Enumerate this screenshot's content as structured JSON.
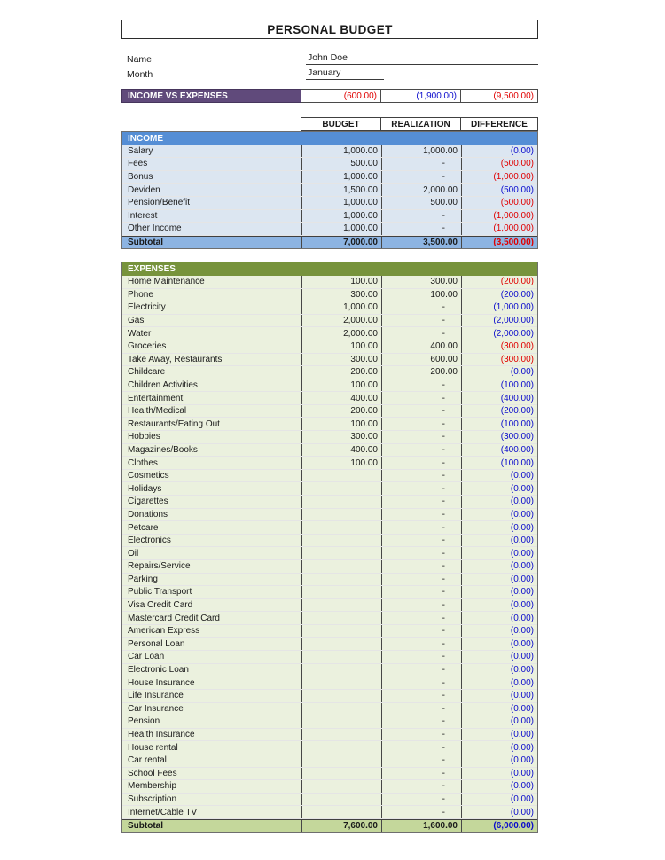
{
  "page": {
    "title": "PERSONAL BUDGET"
  },
  "fields": {
    "name_label": "Name",
    "name_value": "John Doe",
    "month_label": "Month",
    "month_value": "January"
  },
  "summary": {
    "label": "INCOME VS EXPENSES",
    "cells": [
      {
        "value": "(600.00)",
        "color": "red"
      },
      {
        "value": "(1,900.00)",
        "color": "blue"
      },
      {
        "value": "(9,500.00)",
        "color": "red"
      }
    ]
  },
  "table": {
    "columns": [
      "BUDGET",
      "REALIZATION",
      "DIFFERENCE"
    ],
    "income": {
      "header": "INCOME",
      "rows": [
        {
          "label": "Salary",
          "budget": "1,000.00",
          "realization": "1,000.00",
          "difference": "(0.00)",
          "diff_color": "blue"
        },
        {
          "label": "Fees",
          "budget": "500.00",
          "realization": "-",
          "difference": "(500.00)",
          "diff_color": "red"
        },
        {
          "label": "Bonus",
          "budget": "1,000.00",
          "realization": "-",
          "difference": "(1,000.00)",
          "diff_color": "red"
        },
        {
          "label": "Deviden",
          "budget": "1,500.00",
          "realization": "2,000.00",
          "difference": "(500.00)",
          "diff_color": "blue"
        },
        {
          "label": "Pension/Benefit",
          "budget": "1,000.00",
          "realization": "500.00",
          "difference": "(500.00)",
          "diff_color": "red"
        },
        {
          "label": "Interest",
          "budget": "1,000.00",
          "realization": "-",
          "difference": "(1,000.00)",
          "diff_color": "red"
        },
        {
          "label": "Other Income",
          "budget": "1,000.00",
          "realization": "-",
          "difference": "(1,000.00)",
          "diff_color": "red"
        }
      ],
      "subtotal": {
        "label": "Subtotal",
        "budget": "7,000.00",
        "realization": "3,500.00",
        "difference": "(3,500.00)",
        "diff_color": "red"
      }
    },
    "expenses": {
      "header": "EXPENSES",
      "rows": [
        {
          "label": "Home Maintenance",
          "budget": "100.00",
          "realization": "300.00",
          "difference": "(200.00)",
          "diff_color": "red"
        },
        {
          "label": "Phone",
          "budget": "300.00",
          "realization": "100.00",
          "difference": "(200.00)",
          "diff_color": "blue"
        },
        {
          "label": "Electricity",
          "budget": "1,000.00",
          "realization": "-",
          "difference": "(1,000.00)",
          "diff_color": "blue"
        },
        {
          "label": "Gas",
          "budget": "2,000.00",
          "realization": "-",
          "difference": "(2,000.00)",
          "diff_color": "blue"
        },
        {
          "label": "Water",
          "budget": "2,000.00",
          "realization": "-",
          "difference": "(2,000.00)",
          "diff_color": "blue"
        },
        {
          "label": "Groceries",
          "budget": "100.00",
          "realization": "400.00",
          "difference": "(300.00)",
          "diff_color": "red"
        },
        {
          "label": "Take Away, Restaurants",
          "budget": "300.00",
          "realization": "600.00",
          "difference": "(300.00)",
          "diff_color": "red"
        },
        {
          "label": "Childcare",
          "budget": "200.00",
          "realization": "200.00",
          "difference": "(0.00)",
          "diff_color": "blue"
        },
        {
          "label": "Children Activities",
          "budget": "100.00",
          "realization": "-",
          "difference": "(100.00)",
          "diff_color": "blue"
        },
        {
          "label": "Entertainment",
          "budget": "400.00",
          "realization": "-",
          "difference": "(400.00)",
          "diff_color": "blue"
        },
        {
          "label": "Health/Medical",
          "budget": "200.00",
          "realization": "-",
          "difference": "(200.00)",
          "diff_color": "blue"
        },
        {
          "label": "Restaurants/Eating Out",
          "budget": "100.00",
          "realization": "-",
          "difference": "(100.00)",
          "diff_color": "blue"
        },
        {
          "label": "Hobbies",
          "budget": "300.00",
          "realization": "-",
          "difference": "(300.00)",
          "diff_color": "blue"
        },
        {
          "label": "Magazines/Books",
          "budget": "400.00",
          "realization": "-",
          "difference": "(400.00)",
          "diff_color": "blue"
        },
        {
          "label": "Clothes",
          "budget": "100.00",
          "realization": "-",
          "difference": "(100.00)",
          "diff_color": "blue"
        },
        {
          "label": "Cosmetics",
          "budget": "",
          "realization": "-",
          "difference": "(0.00)",
          "diff_color": "blue"
        },
        {
          "label": "Holidays",
          "budget": "",
          "realization": "-",
          "difference": "(0.00)",
          "diff_color": "blue"
        },
        {
          "label": "Cigarettes",
          "budget": "",
          "realization": "-",
          "difference": "(0.00)",
          "diff_color": "blue"
        },
        {
          "label": "Donations",
          "budget": "",
          "realization": "-",
          "difference": "(0.00)",
          "diff_color": "blue"
        },
        {
          "label": "Petcare",
          "budget": "",
          "realization": "-",
          "difference": "(0.00)",
          "diff_color": "blue"
        },
        {
          "label": "Electronics",
          "budget": "",
          "realization": "-",
          "difference": "(0.00)",
          "diff_color": "blue"
        },
        {
          "label": "Oil",
          "budget": "",
          "realization": "-",
          "difference": "(0.00)",
          "diff_color": "blue"
        },
        {
          "label": "Repairs/Service",
          "budget": "",
          "realization": "-",
          "difference": "(0.00)",
          "diff_color": "blue"
        },
        {
          "label": "Parking",
          "budget": "",
          "realization": "-",
          "difference": "(0.00)",
          "diff_color": "blue"
        },
        {
          "label": "Public Transport",
          "budget": "",
          "realization": "-",
          "difference": "(0.00)",
          "diff_color": "blue"
        },
        {
          "label": "Visa Credit Card",
          "budget": "",
          "realization": "-",
          "difference": "(0.00)",
          "diff_color": "blue"
        },
        {
          "label": "Mastercard Credit Card",
          "budget": "",
          "realization": "-",
          "difference": "(0.00)",
          "diff_color": "blue"
        },
        {
          "label": "American Express",
          "budget": "",
          "realization": "-",
          "difference": "(0.00)",
          "diff_color": "blue"
        },
        {
          "label": "Personal Loan",
          "budget": "",
          "realization": "-",
          "difference": "(0.00)",
          "diff_color": "blue"
        },
        {
          "label": "Car Loan",
          "budget": "",
          "realization": "-",
          "difference": "(0.00)",
          "diff_color": "blue"
        },
        {
          "label": "Electronic Loan",
          "budget": "",
          "realization": "-",
          "difference": "(0.00)",
          "diff_color": "blue"
        },
        {
          "label": "House Insurance",
          "budget": "",
          "realization": "-",
          "difference": "(0.00)",
          "diff_color": "blue"
        },
        {
          "label": "Life Insurance",
          "budget": "",
          "realization": "-",
          "difference": "(0.00)",
          "diff_color": "blue"
        },
        {
          "label": "Car Insurance",
          "budget": "",
          "realization": "-",
          "difference": "(0.00)",
          "diff_color": "blue"
        },
        {
          "label": "Pension",
          "budget": "",
          "realization": "-",
          "difference": "(0.00)",
          "diff_color": "blue"
        },
        {
          "label": "Health Insurance",
          "budget": "",
          "realization": "-",
          "difference": "(0.00)",
          "diff_color": "blue"
        },
        {
          "label": "House rental",
          "budget": "",
          "realization": "-",
          "difference": "(0.00)",
          "diff_color": "blue"
        },
        {
          "label": "Car rental",
          "budget": "",
          "realization": "-",
          "difference": "(0.00)",
          "diff_color": "blue"
        },
        {
          "label": "School Fees",
          "budget": "",
          "realization": "-",
          "difference": "(0.00)",
          "diff_color": "blue"
        },
        {
          "label": "Membership",
          "budget": "",
          "realization": "-",
          "difference": "(0.00)",
          "diff_color": "blue"
        },
        {
          "label": "Subscription",
          "budget": "",
          "realization": "-",
          "difference": "(0.00)",
          "diff_color": "blue"
        },
        {
          "label": "Internet/Cable TV",
          "budget": "",
          "realization": "-",
          "difference": "(0.00)",
          "diff_color": "blue"
        }
      ],
      "subtotal": {
        "label": "Subtotal",
        "budget": "7,600.00",
        "realization": "1,600.00",
        "difference": "(6,000.00)",
        "diff_color": "blue"
      }
    }
  },
  "colors": {
    "red": "#E00000",
    "blue": "#0B0BCC",
    "accent_purple": "#604A7B",
    "income_header_blue": "#558ED5",
    "income_row_blue": "#DCE6F1",
    "income_subtotal_blue": "#8DB4E2",
    "expenses_header_olive": "#77933C",
    "expenses_row_green": "#EBF1DE",
    "expenses_subtotal_green": "#C4D79B"
  }
}
